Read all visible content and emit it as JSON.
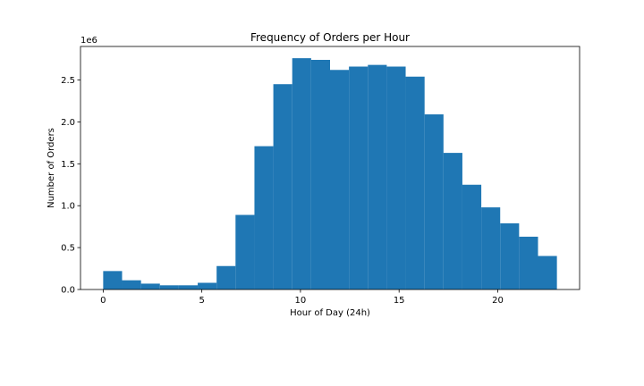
{
  "chart_data": {
    "type": "bar",
    "title": "Frequency of Orders per Hour",
    "xlabel": "Hour of Day (24h)",
    "ylabel": "Number of Orders",
    "y_offset_label": "1e6",
    "xlim": [
      -1.15,
      24.15
    ],
    "ylim": [
      0,
      2.9
    ],
    "xticks": [
      0,
      5,
      10,
      15,
      20
    ],
    "yticks": [
      0.0,
      0.5,
      1.0,
      1.5,
      2.0,
      2.5
    ],
    "ytick_labels": [
      "0.0",
      "0.5",
      "1.0",
      "1.5",
      "2.0",
      "2.5"
    ],
    "bin_edges": [
      0,
      0.958,
      1.917,
      2.875,
      3.833,
      4.792,
      5.75,
      6.708,
      7.667,
      8.625,
      9.583,
      10.542,
      11.5,
      12.458,
      13.417,
      14.375,
      15.333,
      16.292,
      17.25,
      18.208,
      19.167,
      20.125,
      21.083,
      22.042,
      23
    ],
    "values": [
      0.22,
      0.11,
      0.07,
      0.05,
      0.05,
      0.08,
      0.28,
      0.89,
      1.71,
      2.45,
      2.76,
      2.74,
      2.62,
      2.66,
      2.68,
      2.66,
      2.54,
      2.09,
      1.63,
      1.25,
      0.98,
      0.79,
      0.63,
      0.4
    ],
    "bar_color": "#1f77b4",
    "grid": false,
    "legend": "none"
  }
}
